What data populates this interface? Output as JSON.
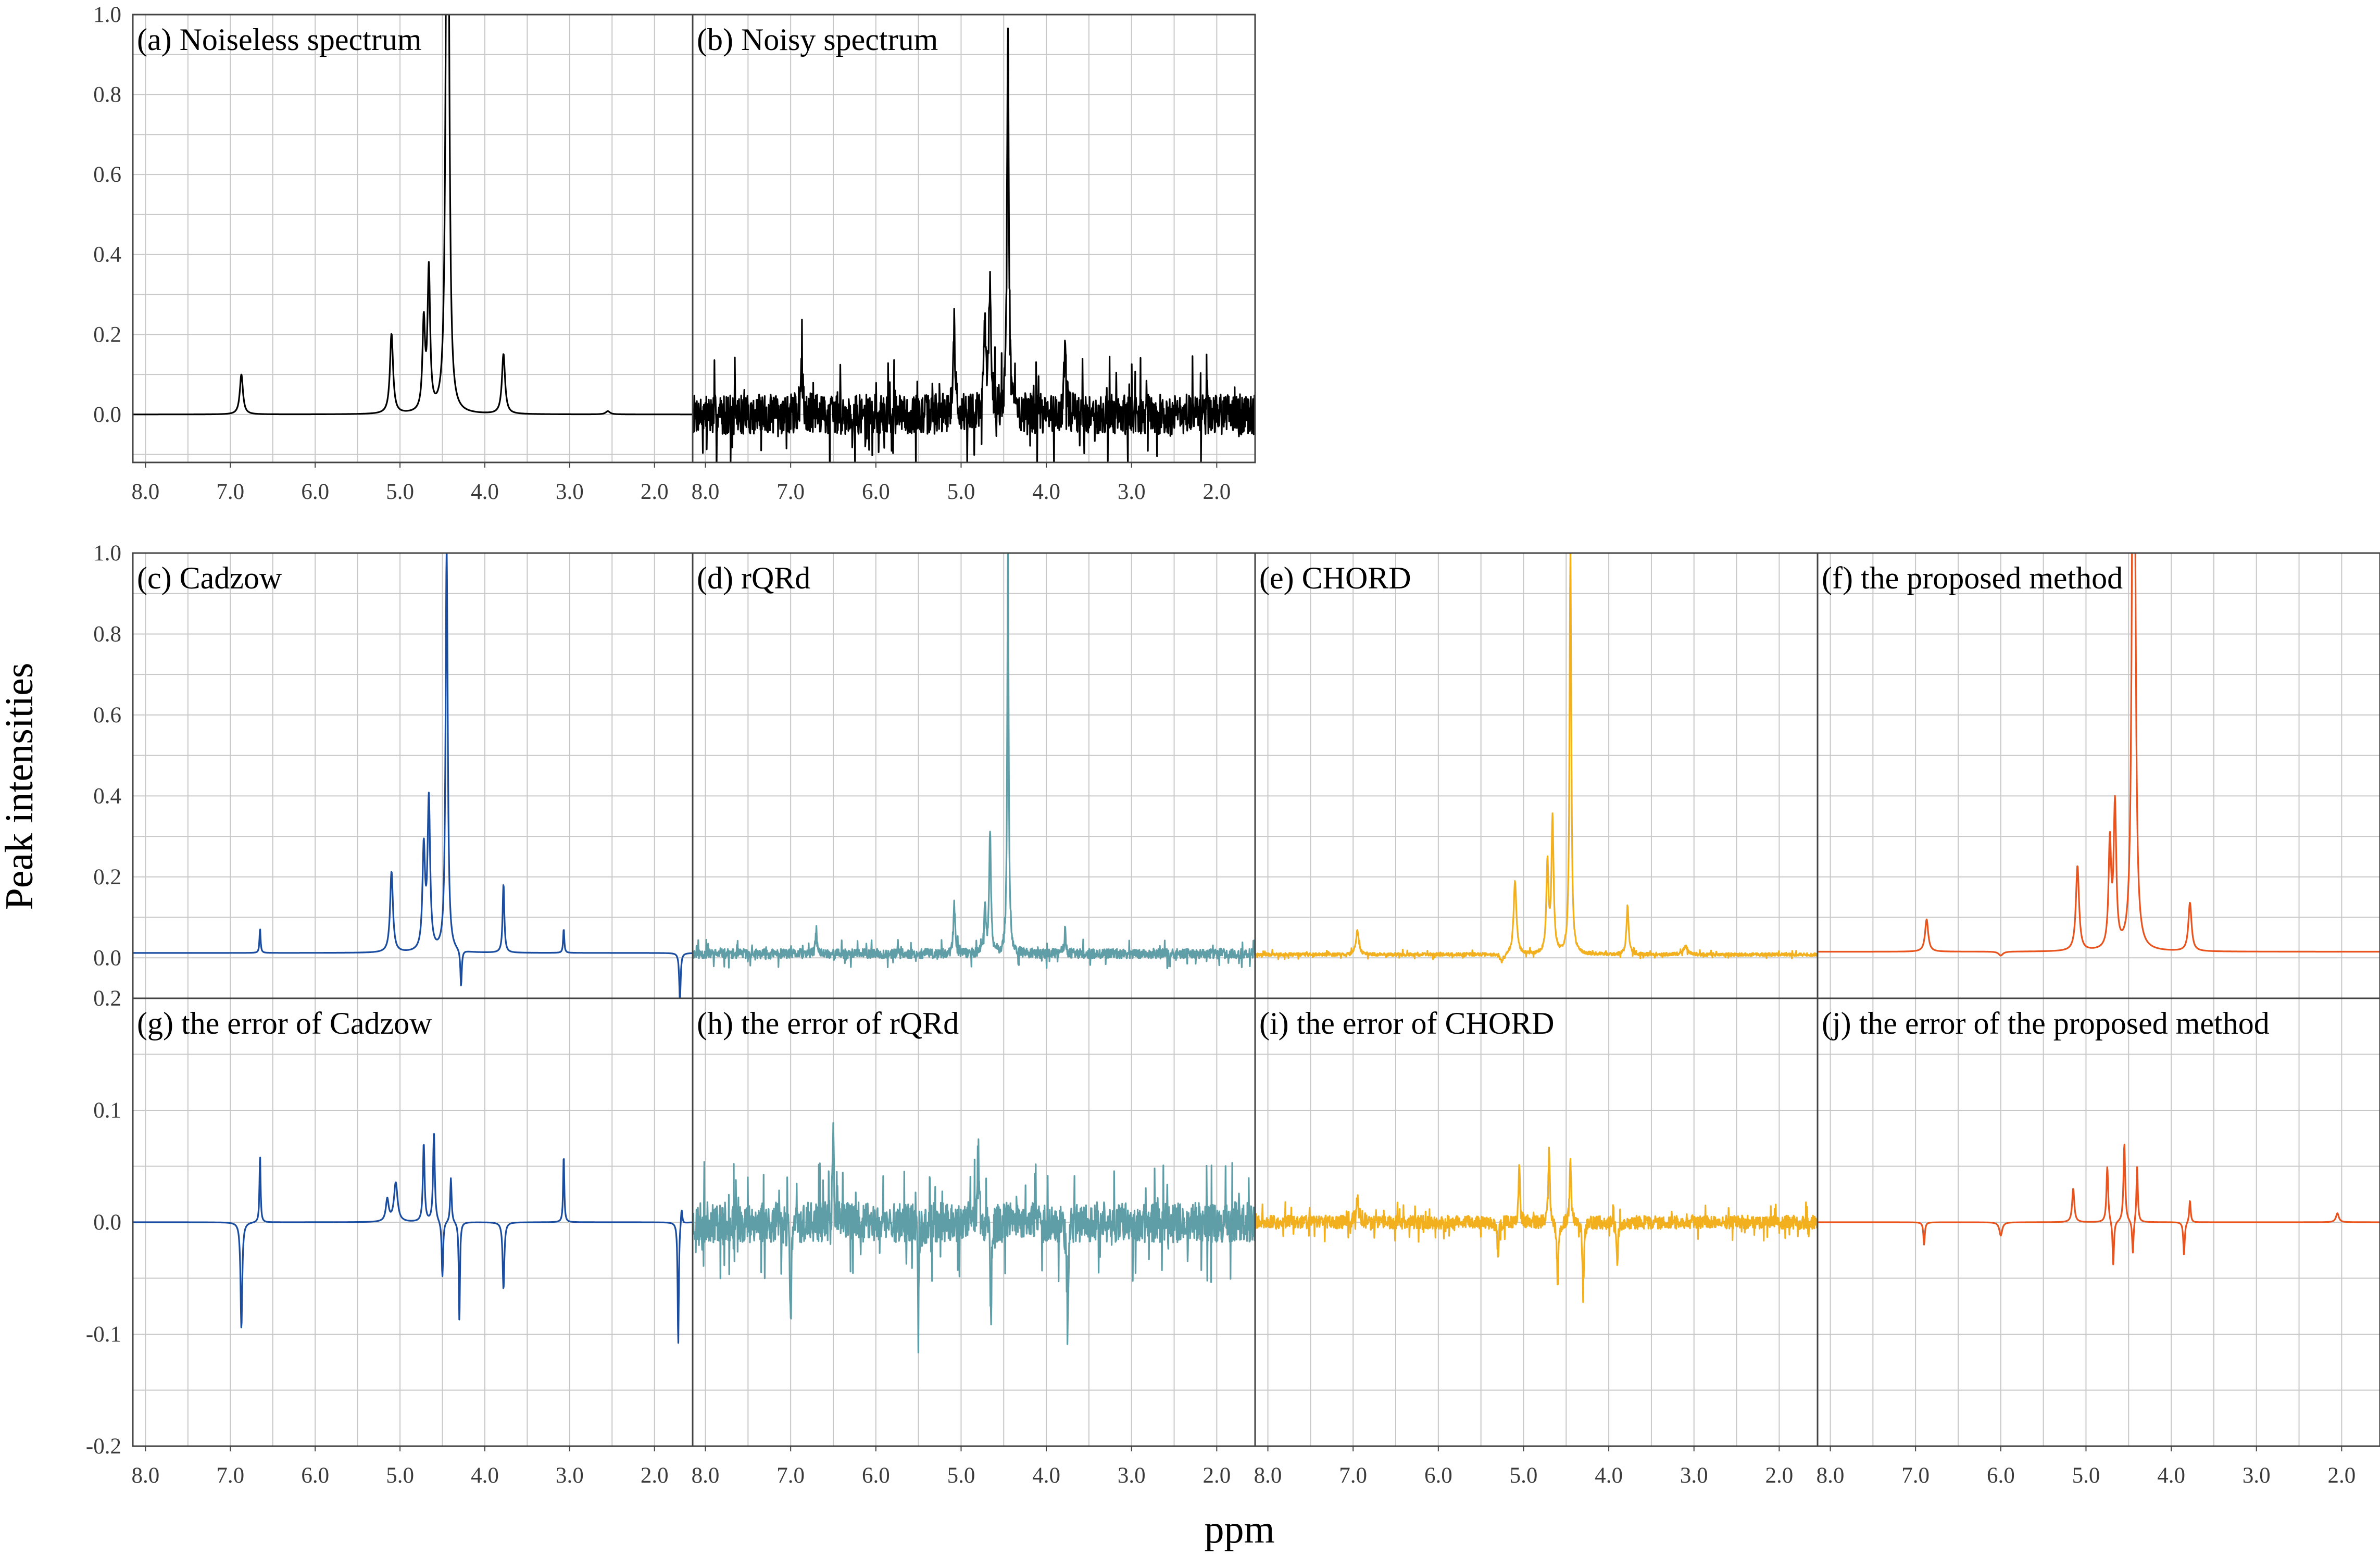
{
  "figure": {
    "ylabel": "Peak intensities",
    "xlabel": "ppm"
  },
  "colors": {
    "black": "#000000",
    "cadzow": "#1a4da0",
    "rqrd": "#5f9ea7",
    "chord": "#f2b01e",
    "proposed": "#e8531e",
    "grid": "#c8c8c8",
    "frame": "#444444"
  },
  "chart_data": [
    {
      "id": "a",
      "type": "line",
      "title": "(a) Noiseless spectrum",
      "color": "black",
      "xlim": [
        8.15,
        1.55
      ],
      "ylim": [
        -0.12,
        1.0
      ],
      "xlabel": "",
      "ylabel": "",
      "xticks": [
        "8.0",
        "7.0",
        "6.0",
        "5.0",
        "4.0",
        "3.0",
        "2.0"
      ],
      "yticks": [
        "1.0",
        "0.8",
        "0.6",
        "0.4",
        "0.2",
        "0.0"
      ],
      "series": [
        {
          "baseline": 0.0,
          "noise": 0.0,
          "peaks": [
            [
              6.87,
              0.1,
              0.022
            ],
            [
              5.1,
              0.2,
              0.022
            ],
            [
              4.72,
              0.22,
              0.018
            ],
            [
              4.66,
              0.35,
              0.018
            ],
            [
              4.45,
              1.0,
              0.018
            ],
            [
              4.43,
              0.9,
              0.018
            ],
            [
              3.78,
              0.15,
              0.022
            ],
            [
              2.55,
              0.008,
              0.03
            ]
          ]
        }
      ]
    },
    {
      "id": "b",
      "type": "line",
      "title": "(b) Noisy spectrum",
      "color": "black",
      "xlim": [
        8.15,
        1.55
      ],
      "ylim": [
        -0.12,
        1.0
      ],
      "xlabel": "",
      "ylabel": "",
      "xticks": [
        "8.0",
        "7.0",
        "6.0",
        "5.0",
        "4.0",
        "3.0",
        "2.0"
      ],
      "yticks": [],
      "series": [
        {
          "baseline": 0.0,
          "noise": 0.05,
          "seed": 7,
          "peaks": [
            [
              6.87,
              0.1,
              0.018
            ],
            [
              5.08,
              0.22,
              0.015
            ],
            [
              4.72,
              0.22,
              0.015
            ],
            [
              4.66,
              0.33,
              0.015
            ],
            [
              4.45,
              1.0,
              0.012
            ],
            [
              3.78,
              0.15,
              0.015
            ]
          ]
        }
      ]
    },
    {
      "id": "c",
      "type": "line",
      "title": "(c) Cadzow",
      "color": "cadzow",
      "xlim": [
        8.15,
        1.55
      ],
      "ylim": [
        -0.1,
        1.0
      ],
      "xlabel": "",
      "ylabel": "",
      "xticks": [],
      "yticks": [
        "1.0",
        "0.8",
        "0.6",
        "0.4",
        "0.2",
        "0.0"
      ],
      "series": [
        {
          "baseline": 0.012,
          "noise": 0.0,
          "peaks": [
            [
              6.65,
              0.06,
              0.008
            ],
            [
              5.1,
              0.2,
              0.02
            ],
            [
              4.72,
              0.25,
              0.018
            ],
            [
              4.66,
              0.37,
              0.018
            ],
            [
              4.45,
              1.0,
              0.015
            ],
            [
              4.28,
              -0.09,
              0.01
            ],
            [
              3.78,
              0.17,
              0.012
            ],
            [
              3.07,
              0.06,
              0.008
            ],
            [
              1.7,
              -0.12,
              0.01
            ]
          ]
        }
      ]
    },
    {
      "id": "d",
      "type": "line",
      "title": "(d) rQRd",
      "color": "rqrd",
      "xlim": [
        8.15,
        1.55
      ],
      "ylim": [
        -0.1,
        1.0
      ],
      "xlabel": "",
      "ylabel": "",
      "xticks": [],
      "yticks": [],
      "series": [
        {
          "baseline": 0.01,
          "noise": 0.012,
          "seed": 11,
          "peaks": [
            [
              6.7,
              0.06,
              0.01
            ],
            [
              5.08,
              0.12,
              0.012
            ],
            [
              4.72,
              0.12,
              0.012
            ],
            [
              4.66,
              0.3,
              0.012
            ],
            [
              4.45,
              1.0,
              0.01
            ],
            [
              3.78,
              0.06,
              0.01
            ]
          ]
        }
      ]
    },
    {
      "id": "e",
      "type": "line",
      "title": "(e) CHORD",
      "color": "chord",
      "xlim": [
        8.15,
        1.55
      ],
      "ylim": [
        -0.1,
        1.0
      ],
      "xlabel": "",
      "ylabel": "",
      "xticks": [],
      "yticks": [],
      "series": [
        {
          "baseline": 0.008,
          "noise": 0.004,
          "seed": 17,
          "peaks": [
            [
              6.95,
              0.06,
              0.02
            ],
            [
              5.25,
              -0.02,
              0.03
            ],
            [
              5.1,
              0.18,
              0.02
            ],
            [
              4.72,
              0.22,
              0.015
            ],
            [
              4.66,
              0.33,
              0.015
            ],
            [
              4.45,
              1.0,
              0.012
            ],
            [
              3.78,
              0.12,
              0.015
            ],
            [
              3.1,
              0.02,
              0.03
            ]
          ]
        }
      ]
    },
    {
      "id": "f",
      "type": "line",
      "title": "(f) the proposed method",
      "color": "proposed",
      "xlim": [
        8.15,
        1.55
      ],
      "ylim": [
        -0.1,
        1.0
      ],
      "xlabel": "",
      "ylabel": "",
      "xticks": [],
      "yticks": [],
      "series": [
        {
          "baseline": 0.015,
          "noise": 0.0,
          "peaks": [
            [
              6.87,
              0.08,
              0.022
            ],
            [
              6.0,
              -0.01,
              0.03
            ],
            [
              5.1,
              0.21,
              0.022
            ],
            [
              4.72,
              0.26,
              0.018
            ],
            [
              4.66,
              0.35,
              0.018
            ],
            [
              4.45,
              1.0,
              0.018
            ],
            [
              4.43,
              0.9,
              0.018
            ],
            [
              3.78,
              0.12,
              0.022
            ]
          ]
        }
      ]
    },
    {
      "id": "g",
      "type": "line",
      "title": "(g) the error of Cadzow",
      "color": "cadzow",
      "xlim": [
        8.15,
        1.55
      ],
      "ylim": [
        -0.2,
        0.2
      ],
      "xlabel": "",
      "ylabel": "",
      "xticks": [
        "8.0",
        "7.0",
        "6.0",
        "5.0",
        "4.0",
        "3.0",
        "2.0"
      ],
      "yticks": [
        "0.2",
        "0.1",
        "0.0",
        "-0.1",
        "-0.2"
      ],
      "series": [
        {
          "baseline": 0.0,
          "noise": 0.0,
          "peaks": [
            [
              6.87,
              -0.095,
              0.012
            ],
            [
              6.65,
              0.06,
              0.008
            ],
            [
              5.15,
              0.02,
              0.02
            ],
            [
              5.05,
              0.035,
              0.025
            ],
            [
              4.72,
              0.07,
              0.012
            ],
            [
              4.6,
              0.08,
              0.012
            ],
            [
              4.5,
              -0.05,
              0.01
            ],
            [
              4.4,
              0.04,
              0.01
            ],
            [
              4.3,
              -0.09,
              0.008
            ],
            [
              3.78,
              -0.06,
              0.012
            ],
            [
              3.07,
              0.06,
              0.008
            ],
            [
              1.72,
              -0.11,
              0.008
            ],
            [
              1.68,
              0.015,
              0.01
            ]
          ]
        }
      ]
    },
    {
      "id": "h",
      "type": "line",
      "title": "(h) the error of rQRd",
      "color": "rqrd",
      "xlim": [
        8.15,
        1.55
      ],
      "ylim": [
        -0.2,
        0.2
      ],
      "xlabel": "",
      "ylabel": "",
      "xticks": [
        "8.0",
        "7.0",
        "6.0",
        "5.0",
        "4.0",
        "3.0",
        "2.0"
      ],
      "yticks": [],
      "series": [
        {
          "baseline": 0.0,
          "noise": 0.018,
          "seed": 23,
          "peaks": [
            [
              7.0,
              -0.09,
              0.01
            ],
            [
              6.5,
              0.08,
              0.01
            ],
            [
              5.5,
              -0.07,
              0.01
            ],
            [
              4.65,
              -0.08,
              0.01
            ],
            [
              3.75,
              -0.1,
              0.01
            ],
            [
              4.8,
              0.07,
              0.01
            ]
          ]
        }
      ]
    },
    {
      "id": "i",
      "type": "line",
      "title": "(i) the error of CHORD",
      "color": "chord",
      "xlim": [
        8.15,
        1.55
      ],
      "ylim": [
        -0.2,
        0.2
      ],
      "xlabel": "",
      "ylabel": "",
      "xticks": [
        "8.0",
        "7.0",
        "6.0",
        "5.0",
        "4.0",
        "3.0",
        "2.0"
      ],
      "yticks": [],
      "series": [
        {
          "baseline": 0.0,
          "noise": 0.006,
          "seed": 31,
          "peaks": [
            [
              5.3,
              -0.03,
              0.01
            ],
            [
              5.05,
              0.05,
              0.01
            ],
            [
              4.7,
              0.07,
              0.01
            ],
            [
              4.6,
              -0.06,
              0.01
            ],
            [
              4.45,
              0.06,
              0.01
            ],
            [
              4.3,
              -0.07,
              0.01
            ],
            [
              3.9,
              -0.04,
              0.01
            ],
            [
              6.95,
              0.02,
              0.02
            ]
          ]
        }
      ]
    },
    {
      "id": "j",
      "type": "line",
      "title": "(j) the error of the proposed method",
      "color": "proposed",
      "xlim": [
        8.15,
        1.55
      ],
      "ylim": [
        -0.2,
        0.2
      ],
      "xlabel": "",
      "ylabel": "",
      "xticks": [
        "8.0",
        "7.0",
        "6.0",
        "5.0",
        "4.0",
        "3.0",
        "2.0"
      ],
      "yticks": [],
      "series": [
        {
          "baseline": 0.0,
          "noise": 0.0,
          "peaks": [
            [
              6.9,
              -0.02,
              0.01
            ],
            [
              6.0,
              -0.012,
              0.02
            ],
            [
              5.15,
              0.03,
              0.015
            ],
            [
              4.75,
              0.05,
              0.012
            ],
            [
              4.68,
              -0.04,
              0.01
            ],
            [
              4.55,
              0.07,
              0.012
            ],
            [
              4.45,
              -0.03,
              0.01
            ],
            [
              4.4,
              0.05,
              0.01
            ],
            [
              3.85,
              -0.03,
              0.01
            ],
            [
              3.78,
              0.02,
              0.01
            ],
            [
              2.05,
              0.008,
              0.02
            ]
          ]
        }
      ]
    }
  ]
}
